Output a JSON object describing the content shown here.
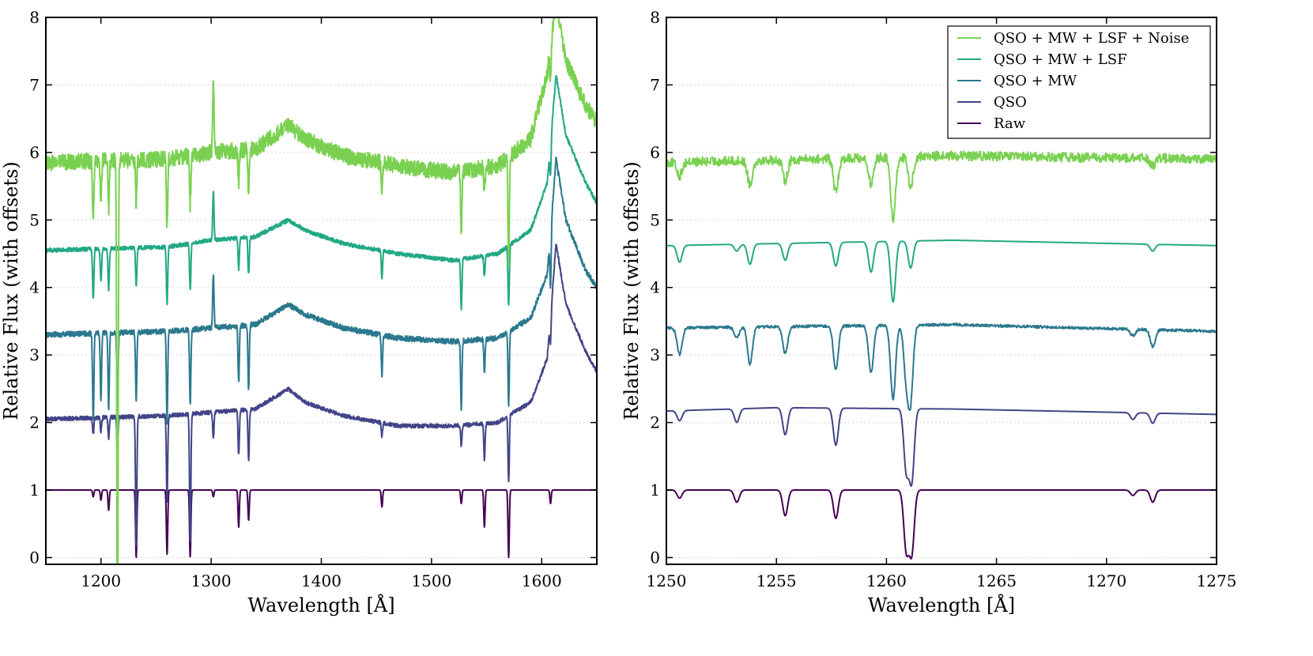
{
  "chart_data": [
    {
      "type": "line",
      "xlabel": "Wavelength [Å]",
      "ylabel": "Relative Flux (with offsets)",
      "xlim": [
        1150,
        1650
      ],
      "ylim": [
        -0.1,
        8
      ],
      "xticks": [
        1200,
        1300,
        1400,
        1500,
        1600
      ],
      "yticks": [
        0,
        1,
        2,
        3,
        4,
        5,
        6,
        7,
        8
      ],
      "grid": "horizontal-dotted",
      "series": [
        {
          "name": "QSO + MW + LSF + Noise",
          "color": "#7ad151",
          "offset": 5.85,
          "continuum": [
            [
              1150,
              0
            ],
            [
              1260,
              0.05
            ],
            [
              1300,
              0.15
            ],
            [
              1340,
              0.2
            ],
            [
              1370,
              0.55
            ],
            [
              1385,
              0.35
            ],
            [
              1420,
              0.1
            ],
            [
              1470,
              -0.05
            ],
            [
              1520,
              -0.15
            ],
            [
              1560,
              -0.05
            ],
            [
              1590,
              0.35
            ],
            [
              1605,
              1.3
            ],
            [
              1613,
              2.4
            ],
            [
              1622,
              1.5
            ],
            [
              1640,
              0.85
            ],
            [
              1650,
              0.6
            ]
          ],
          "lines": [
            [
              1193,
              -0.95
            ],
            [
              1200,
              -0.55
            ],
            [
              1207,
              -0.7
            ],
            [
              1215,
              -7.5
            ],
            [
              1232,
              -0.65
            ],
            [
              1260,
              -1.0
            ],
            [
              1281,
              -0.75
            ],
            [
              1302,
              1.1
            ],
            [
              1325,
              -0.5
            ],
            [
              1334,
              -0.6
            ],
            [
              1455,
              -0.4
            ],
            [
              1527,
              -0.9
            ],
            [
              1548,
              -0.35
            ],
            [
              1570,
              -1.6
            ],
            [
              1608,
              -0.5
            ]
          ],
          "noise": 0.12
        },
        {
          "name": "QSO + MW + LSF",
          "color": "#22a884",
          "offset": 4.55,
          "continuum": [
            [
              1150,
              0
            ],
            [
              1260,
              0.05
            ],
            [
              1300,
              0.15
            ],
            [
              1340,
              0.2
            ],
            [
              1370,
              0.45
            ],
            [
              1385,
              0.3
            ],
            [
              1420,
              0.1
            ],
            [
              1470,
              -0.05
            ],
            [
              1520,
              -0.15
            ],
            [
              1560,
              -0.05
            ],
            [
              1590,
              0.3
            ],
            [
              1605,
              1.0
            ],
            [
              1613,
              2.6
            ],
            [
              1622,
              1.7
            ],
            [
              1640,
              1.0
            ],
            [
              1650,
              0.7
            ]
          ],
          "lines": [
            [
              1193,
              -0.75
            ],
            [
              1200,
              -0.5
            ],
            [
              1207,
              -0.6
            ],
            [
              1232,
              -0.55
            ],
            [
              1260,
              -0.85
            ],
            [
              1281,
              -0.7
            ],
            [
              1302,
              0.7
            ],
            [
              1325,
              -0.45
            ],
            [
              1334,
              -0.55
            ],
            [
              1455,
              -0.4
            ],
            [
              1527,
              -0.75
            ],
            [
              1548,
              -0.3
            ],
            [
              1570,
              -0.9
            ],
            [
              1608,
              -0.5
            ]
          ],
          "noise": 0.03
        },
        {
          "name": "QSO + MW",
          "color": "#2a788e",
          "offset": 3.3,
          "continuum": [
            [
              1150,
              0
            ],
            [
              1260,
              0.05
            ],
            [
              1300,
              0.1
            ],
            [
              1340,
              0.15
            ],
            [
              1370,
              0.45
            ],
            [
              1385,
              0.3
            ],
            [
              1420,
              0.1
            ],
            [
              1470,
              -0.05
            ],
            [
              1520,
              -0.1
            ],
            [
              1560,
              -0.05
            ],
            [
              1590,
              0.25
            ],
            [
              1605,
              0.9
            ],
            [
              1613,
              2.6
            ],
            [
              1622,
              1.7
            ],
            [
              1640,
              0.95
            ],
            [
              1650,
              0.7
            ]
          ],
          "lines": [
            [
              1193,
              -1.3
            ],
            [
              1200,
              -1.0
            ],
            [
              1207,
              -1.1
            ],
            [
              1215,
              -1.2
            ],
            [
              1232,
              -1.0
            ],
            [
              1260,
              -1.35
            ],
            [
              1281,
              -1.1
            ],
            [
              1302,
              0.8
            ],
            [
              1325,
              -0.85
            ],
            [
              1334,
              -0.95
            ],
            [
              1455,
              -0.6
            ],
            [
              1527,
              -1.0
            ],
            [
              1548,
              -0.5
            ],
            [
              1570,
              -1.1
            ],
            [
              1608,
              -0.8
            ]
          ],
          "noise": 0.04
        },
        {
          "name": "QSO",
          "color": "#414487",
          "offset": 2.05,
          "continuum": [
            [
              1150,
              0
            ],
            [
              1260,
              0.05
            ],
            [
              1300,
              0.1
            ],
            [
              1340,
              0.15
            ],
            [
              1370,
              0.45
            ],
            [
              1385,
              0.25
            ],
            [
              1420,
              0.05
            ],
            [
              1470,
              -0.1
            ],
            [
              1520,
              -0.1
            ],
            [
              1560,
              -0.05
            ],
            [
              1590,
              0.25
            ],
            [
              1605,
              0.9
            ],
            [
              1613,
              2.6
            ],
            [
              1622,
              1.7
            ],
            [
              1640,
              1.0
            ],
            [
              1650,
              0.7
            ]
          ],
          "lines": [
            [
              1193,
              -0.25
            ],
            [
              1200,
              -0.2
            ],
            [
              1207,
              -0.3
            ],
            [
              1215,
              -0.5
            ],
            [
              1232,
              -1.9
            ],
            [
              1260,
              -1.25
            ],
            [
              1281,
              -1.9
            ],
            [
              1302,
              -0.4
            ],
            [
              1325,
              -0.65
            ],
            [
              1334,
              -0.75
            ],
            [
              1455,
              -0.2
            ],
            [
              1527,
              -0.3
            ],
            [
              1548,
              -0.55
            ],
            [
              1570,
              -1.0
            ],
            [
              1608,
              -0.4
            ]
          ],
          "noise": 0.03
        },
        {
          "name": "Raw",
          "color": "#440154",
          "offset": 1.0,
          "continuum": [
            [
              1150,
              0
            ],
            [
              1650,
              0
            ]
          ],
          "lines": [
            [
              1193,
              -0.1
            ],
            [
              1200,
              -0.15
            ],
            [
              1207,
              -0.3
            ],
            [
              1232,
              -1.0
            ],
            [
              1260,
              -0.95
            ],
            [
              1281,
              -1.0
            ],
            [
              1302,
              -0.1
            ],
            [
              1325,
              -0.55
            ],
            [
              1334,
              -0.45
            ],
            [
              1455,
              -0.25
            ],
            [
              1527,
              -0.2
            ],
            [
              1548,
              -0.55
            ],
            [
              1570,
              -1.0
            ],
            [
              1608,
              -0.2
            ]
          ],
          "noise": 0
        }
      ]
    },
    {
      "type": "line",
      "xlabel": "Wavelength [Å]",
      "ylabel": "Relative Flux (with offsets)",
      "xlim": [
        1250,
        1275
      ],
      "ylim": [
        -0.1,
        8
      ],
      "xticks": [
        1250,
        1255,
        1260,
        1265,
        1270,
        1275
      ],
      "yticks": [
        0,
        1,
        2,
        3,
        4,
        5,
        6,
        7,
        8
      ],
      "grid": "horizontal-dotted",
      "legend": "top-right",
      "series": [
        {
          "name": "QSO + MW + LSF + Noise",
          "color": "#7ad151",
          "offset": 5.85,
          "continuum": [
            [
              1250,
              0
            ],
            [
              1263,
              0.1
            ],
            [
              1275,
              0.05
            ]
          ],
          "lines": [
            [
              1250.6,
              -0.2
            ],
            [
              1253.8,
              -0.35
            ],
            [
              1255.4,
              -0.3
            ],
            [
              1257.7,
              -0.5
            ],
            [
              1259.3,
              -0.4
            ],
            [
              1260.3,
              -0.9
            ],
            [
              1261.1,
              -0.45
            ],
            [
              1272.1,
              -0.1
            ]
          ],
          "noise": 0.07
        },
        {
          "name": "QSO + MW + LSF",
          "color": "#22a884",
          "offset": 4.62,
          "continuum": [
            [
              1250,
              0
            ],
            [
              1263,
              0.08
            ],
            [
              1275,
              0.0
            ]
          ],
          "lines": [
            [
              1250.6,
              -0.25
            ],
            [
              1253.2,
              -0.1
            ],
            [
              1253.8,
              -0.3
            ],
            [
              1255.4,
              -0.25
            ],
            [
              1257.7,
              -0.35
            ],
            [
              1259.3,
              -0.45
            ],
            [
              1260.3,
              -0.9
            ],
            [
              1261.1,
              -0.4
            ],
            [
              1272.1,
              -0.1
            ]
          ],
          "noise": 0
        },
        {
          "name": "QSO + MW",
          "color": "#2a788e",
          "offset": 3.4,
          "continuum": [
            [
              1250,
              0
            ],
            [
              1263,
              0.05
            ],
            [
              1275,
              -0.05
            ]
          ],
          "lines": [
            [
              1250.6,
              -0.4
            ],
            [
              1253.2,
              -0.15
            ],
            [
              1253.8,
              -0.55
            ],
            [
              1255.4,
              -0.4
            ],
            [
              1257.7,
              -0.65
            ],
            [
              1259.3,
              -0.7
            ],
            [
              1260.3,
              -1.1
            ],
            [
              1260.9,
              -0.75
            ],
            [
              1261.1,
              -1.05
            ],
            [
              1271.2,
              -0.1
            ],
            [
              1272.1,
              -0.25
            ]
          ],
          "noise": 0.02
        },
        {
          "name": "QSO",
          "color": "#414487",
          "offset": 2.17,
          "continuum": [
            [
              1250,
              0
            ],
            [
              1255,
              0.05
            ],
            [
              1263,
              0.03
            ],
            [
              1275,
              -0.05
            ]
          ],
          "lines": [
            [
              1250.6,
              -0.15
            ],
            [
              1253.2,
              -0.2
            ],
            [
              1255.4,
              -0.4
            ],
            [
              1257.7,
              -0.55
            ],
            [
              1260.9,
              -0.9
            ],
            [
              1261.15,
              -1.05
            ],
            [
              1271.2,
              -0.1
            ],
            [
              1272.1,
              -0.15
            ]
          ],
          "noise": 0
        },
        {
          "name": "Raw",
          "color": "#440154",
          "offset": 1.0,
          "continuum": [
            [
              1250,
              0
            ],
            [
              1275,
              0
            ]
          ],
          "lines": [
            [
              1250.6,
              -0.12
            ],
            [
              1253.2,
              -0.18
            ],
            [
              1255.4,
              -0.38
            ],
            [
              1257.7,
              -0.42
            ],
            [
              1260.9,
              -0.88
            ],
            [
              1261.15,
              -0.92
            ],
            [
              1271.2,
              -0.08
            ],
            [
              1272.1,
              -0.18
            ]
          ],
          "noise": 0
        }
      ]
    }
  ]
}
